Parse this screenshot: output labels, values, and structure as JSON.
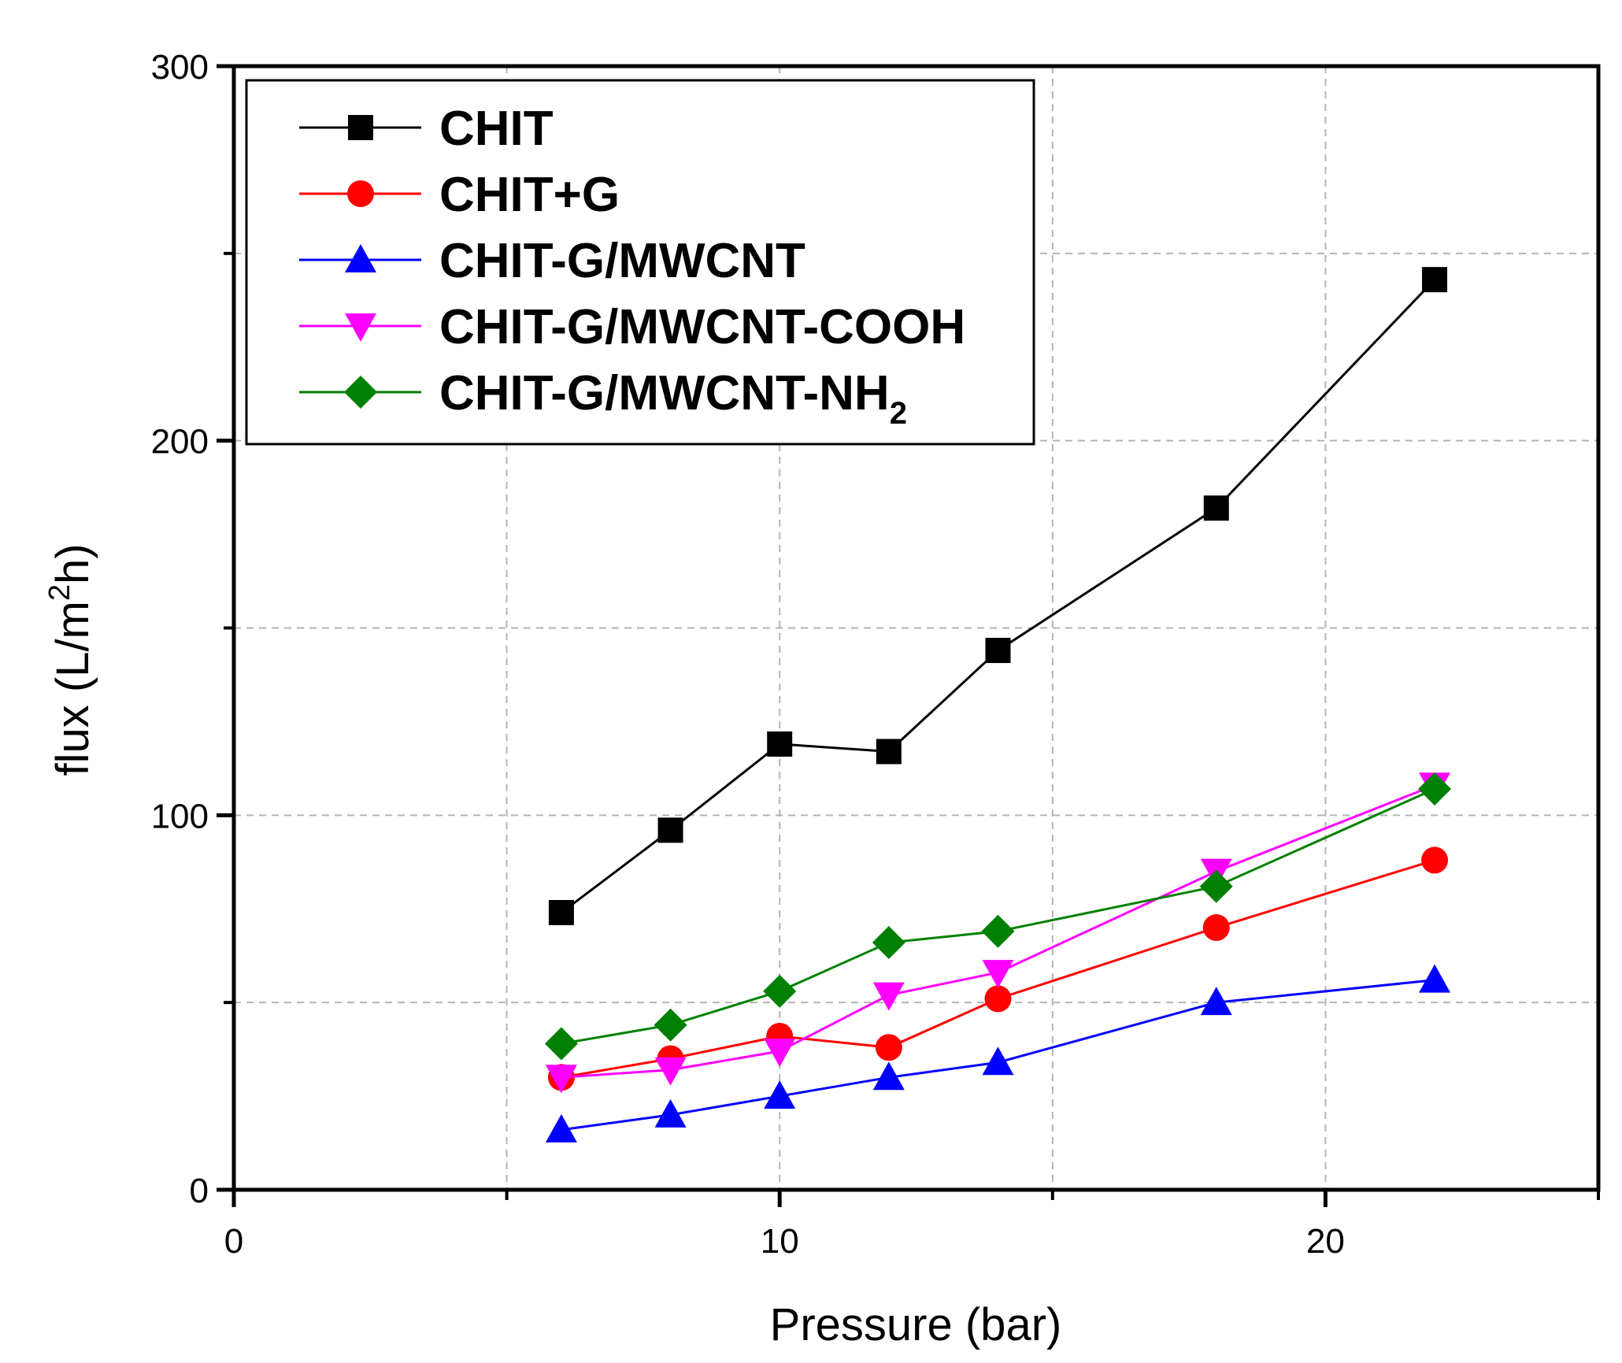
{
  "chart_data": {
    "type": "line",
    "xlabel": "Pressure (bar)",
    "ylabel_prefix": "flux  (L/m",
    "ylabel_sup": "2",
    "ylabel_suffix": "h)",
    "xlim": [
      0,
      25
    ],
    "ylim": [
      0,
      300
    ],
    "xticks": [
      0,
      10,
      20
    ],
    "xticks_minor": [
      5,
      15,
      25
    ],
    "yticks": [
      0,
      100,
      200,
      300
    ],
    "yticks_minor": [
      50,
      150,
      250
    ],
    "grid": true,
    "legend_position": "top-left",
    "series": [
      {
        "name": "CHIT",
        "sub": "",
        "color": "#000000",
        "marker": "square",
        "x": [
          6,
          8,
          10,
          12,
          14,
          18,
          22
        ],
        "y": [
          74,
          96,
          119,
          117,
          144,
          182,
          243
        ]
      },
      {
        "name": "CHIT+G",
        "sub": "",
        "color": "#ff0000",
        "marker": "circle",
        "x": [
          6,
          8,
          10,
          12,
          14,
          18,
          22
        ],
        "y": [
          30,
          35,
          41,
          38,
          51,
          70,
          88
        ]
      },
      {
        "name": "CHIT-G/MWCNT",
        "sub": "",
        "color": "#0000ff",
        "marker": "triangle-up",
        "x": [
          6,
          8,
          10,
          12,
          14,
          18,
          22
        ],
        "y": [
          16,
          20,
          25,
          30,
          34,
          50,
          56
        ]
      },
      {
        "name": "CHIT-G/MWCNT-COOH",
        "sub": "",
        "color": "#ff00ff",
        "marker": "triangle-down",
        "x": [
          6,
          8,
          10,
          12,
          14,
          18,
          22
        ],
        "y": [
          30,
          32,
          37,
          52,
          58,
          85,
          108
        ]
      },
      {
        "name": "CHIT-G/MWCNT-NH",
        "sub": "2",
        "color": "#008000",
        "marker": "diamond",
        "x": [
          6,
          8,
          10,
          12,
          14,
          18,
          22
        ],
        "y": [
          39,
          44,
          53,
          66,
          69,
          81,
          107
        ]
      }
    ]
  }
}
